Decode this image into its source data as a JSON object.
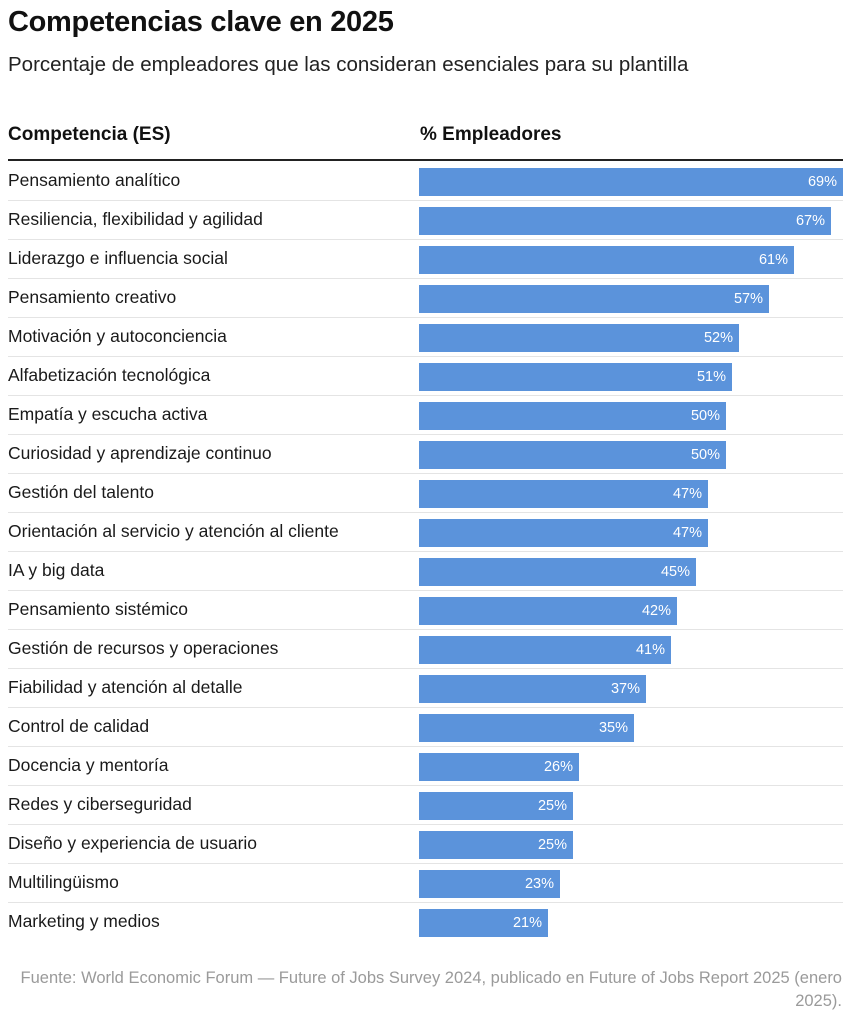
{
  "header": {
    "title": "Competencias clave en 2025",
    "subtitle": "Porcentaje de empleadores que las consideran esenciales para su plantilla"
  },
  "columns": {
    "label_header": "Competencia (ES)",
    "value_header": "% Empleadores"
  },
  "colors": {
    "bar": "#5b93db",
    "text": "#111111",
    "source": "#9a9a9a"
  },
  "chart_data": {
    "type": "bar",
    "orientation": "horizontal",
    "title": "Competencias clave en 2025",
    "subtitle": "Porcentaje de empleadores que las consideran esenciales para su plantilla",
    "xlim": [
      0,
      69
    ],
    "categories": [
      "Pensamiento analítico",
      "Resiliencia, flexibilidad y agilidad",
      "Liderazgo e influencia social",
      "Pensamiento creativo",
      "Motivación y autoconciencia",
      "Alfabetización tecnológica",
      "Empatía y escucha activa",
      "Curiosidad y aprendizaje continuo",
      "Gestión del talento",
      "Orientación al servicio y atención al cliente",
      "IA y big data",
      "Pensamiento sistémico",
      "Gestión de recursos y operaciones",
      "Fiabilidad y atención al detalle",
      "Control de calidad",
      "Docencia y mentoría",
      "Redes y ciberseguridad",
      "Diseño y experiencia de usuario",
      "Multilingüismo",
      "Marketing y medios"
    ],
    "values": [
      69,
      67,
      61,
      57,
      52,
      51,
      50,
      50,
      47,
      47,
      45,
      42,
      41,
      37,
      35,
      26,
      25,
      25,
      23,
      21
    ],
    "value_labels": [
      "69%",
      "67%",
      "61%",
      "57%",
      "52%",
      "51%",
      "50%",
      "50%",
      "47%",
      "47%",
      "45%",
      "42%",
      "41%",
      "37%",
      "35%",
      "26%",
      "25%",
      "25%",
      "23%",
      "21%"
    ]
  },
  "footer": {
    "source": "Fuente: World Economic Forum — Future of Jobs Survey 2024, publicado en Future of Jobs Report 2025 (enero 2025)."
  }
}
